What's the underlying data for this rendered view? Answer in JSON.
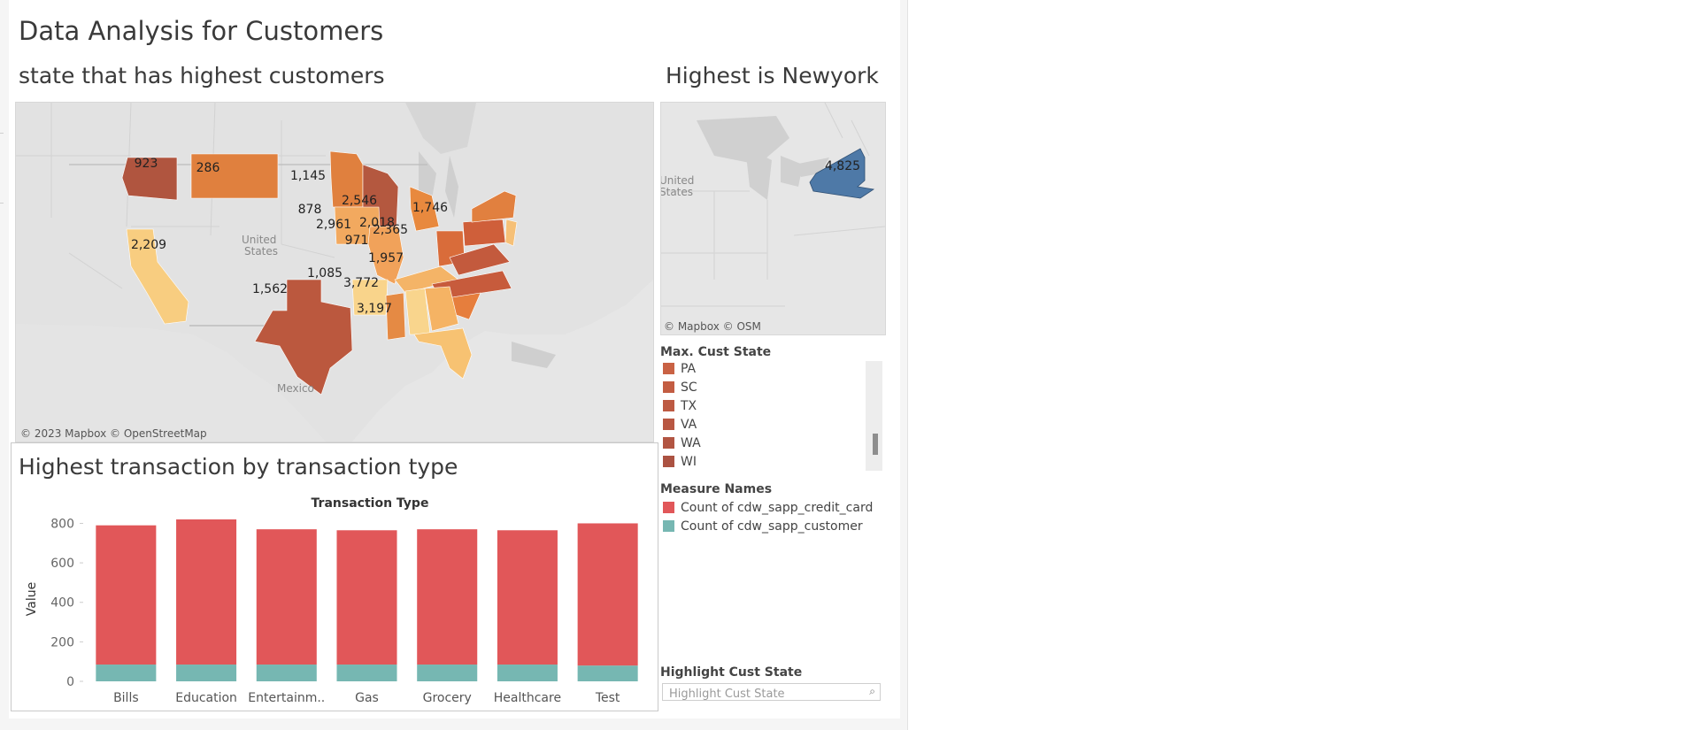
{
  "dashboard": {
    "title": "Data Analysis for Customers",
    "map_title": "state  that has highest customers",
    "highlight_title": "Highest is Newyork",
    "bar_title": "Highest transaction by transaction type"
  },
  "map_main": {
    "credit": "© 2023 Mapbox © OpenStreetMap",
    "place_labels": [
      "United",
      "States",
      "Mexico"
    ],
    "states": [
      {
        "state": "WA",
        "value": "923",
        "color": "#b0553f"
      },
      {
        "state": "MT",
        "value": "286",
        "color": "#e0803e"
      },
      {
        "state": "MN",
        "value": "1,145",
        "color": "#e0803e"
      },
      {
        "state": "WI",
        "value": "",
        "color": "#b4583f"
      },
      {
        "state": "IA",
        "value": "878",
        "color": "#f2a95f"
      },
      {
        "state": "IL",
        "value": "2,961",
        "color": "#f1a25a"
      },
      {
        "state": "MI",
        "value": "2,546",
        "color": "#e8893e"
      },
      {
        "state": "OH",
        "value": "2,018",
        "color": "#d96c3a"
      },
      {
        "state": "KY",
        "value": "971",
        "color": "#f4b467"
      },
      {
        "state": "PA",
        "value": "",
        "color": "#cf5f3a"
      },
      {
        "state": "NY",
        "value": "",
        "color": "#e1803f"
      },
      {
        "state": "NJ",
        "value": "1,746",
        "color": "#f6c077"
      },
      {
        "state": "VA",
        "value": "2,365",
        "color": "#c35a3d"
      },
      {
        "state": "NC",
        "value": "1,957",
        "color": "#c75b3c"
      },
      {
        "state": "SC",
        "value": "",
        "color": "#e67e3d"
      },
      {
        "state": "CA",
        "value": "2,209",
        "color": "#f8cd80"
      },
      {
        "state": "TX",
        "value": "1,562",
        "color": "#bb583e"
      },
      {
        "state": "AR",
        "value": "",
        "color": "#f9d48b"
      },
      {
        "state": "MS",
        "value": "1,085",
        "color": "#e58a44"
      },
      {
        "state": "AL",
        "value": "",
        "color": "#f9d58d"
      },
      {
        "state": "GA",
        "value": "3,772",
        "color": "#f5b364"
      },
      {
        "state": "FL",
        "value": "3,197",
        "color": "#f7c272"
      }
    ]
  },
  "map_highlight": {
    "credit": "© Mapbox © OSM",
    "place_labels": [
      "United",
      "States"
    ],
    "state": "NY",
    "value": "4,825",
    "color": "#4e79a7"
  },
  "legend_cust_state": {
    "title": "Max. Cust State",
    "items": [
      {
        "label": "PA",
        "color": "#c96244"
      },
      {
        "label": "SC",
        "color": "#c35d42"
      },
      {
        "label": "TX",
        "color": "#bd5a42"
      },
      {
        "label": "VA",
        "color": "#b85742"
      },
      {
        "label": "WA",
        "color": "#b25542"
      },
      {
        "label": "WI",
        "color": "#ab5242"
      }
    ]
  },
  "legend_measures": {
    "title": "Measure Names",
    "items": [
      {
        "label": "Count of cdw_sapp_credit_card",
        "color": "#e15759"
      },
      {
        "label": "Count of cdw_sapp_customer",
        "color": "#76b7b2"
      }
    ]
  },
  "highlight_filter": {
    "title": "Highlight Cust State",
    "placeholder": "Highlight Cust State",
    "icon": "search-icon"
  },
  "chart_data": {
    "type": "bar",
    "stacked": true,
    "title": "Transaction Type",
    "xlabel": "",
    "ylabel": "Value",
    "ylim": [
      0,
      820
    ],
    "yticks": [
      0,
      200,
      400,
      600,
      800
    ],
    "categories": [
      "Bills",
      "Education",
      "Entertainm..",
      "Gas",
      "Grocery",
      "Healthcare",
      "Test"
    ],
    "series": [
      {
        "name": "Count of cdw_sapp_customer",
        "color": "#76b7b2",
        "values": [
          85,
          85,
          85,
          85,
          85,
          85,
          80
        ]
      },
      {
        "name": "Count of cdw_sapp_credit_card",
        "color": "#e15759",
        "values": [
          705,
          735,
          685,
          680,
          685,
          680,
          720
        ]
      }
    ],
    "grid": false,
    "legend": "right"
  }
}
